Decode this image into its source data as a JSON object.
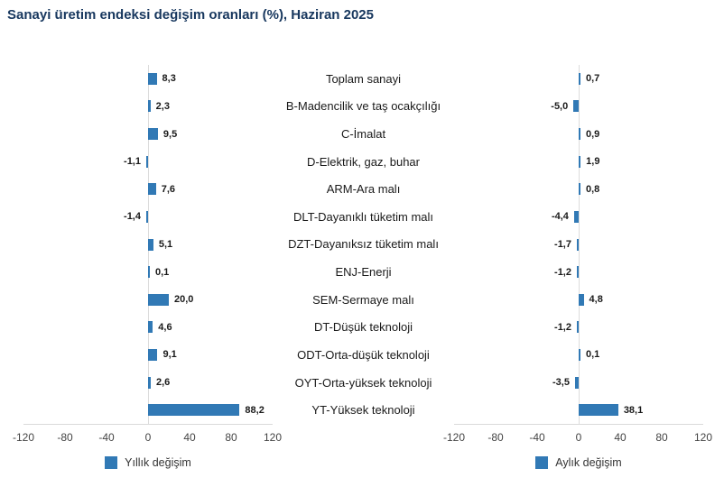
{
  "title": "Sanayi üretim endeksi değişim oranları (%), Haziran 2025",
  "colors": {
    "bar": "#3179b5",
    "title": "#17375e",
    "axis_line": "#d9d9d9",
    "value_label": "#1a1a1a",
    "tick_label": "#444444",
    "category_label": "#1a1a1a"
  },
  "chart_data": {
    "type": "bar",
    "orientation": "horizontal",
    "title": "Sanayi üretim endeksi değişim oranları (%), Haziran 2025",
    "xlim": [
      -120,
      120
    ],
    "xticks": [
      -120,
      -80,
      -40,
      0,
      40,
      80,
      120
    ],
    "tick_labels": [
      "-120",
      "-80",
      "-40",
      "0",
      "40",
      "80",
      "120"
    ],
    "grid": false,
    "legend_position": "bottom",
    "categories": [
      "Toplam sanayi",
      "B-Madencilik ve taş ocakçılığı",
      "C-İmalat",
      "D-Elektrik, gaz, buhar",
      "ARM-Ara malı",
      "DLT-Dayanıklı tüketim malı",
      "DZT-Dayanıksız tüketim malı",
      "ENJ-Enerji",
      "SEM-Sermaye malı",
      "DT-Düşük teknoloji",
      "ODT-Orta-düşük teknoloji",
      "OYT-Orta-yüksek teknoloji",
      "YT-Yüksek teknoloji"
    ],
    "series": [
      {
        "name": "Yıllık değişim",
        "values": [
          8.3,
          2.3,
          9.5,
          -1.1,
          7.6,
          -1.4,
          5.1,
          0.1,
          20.0,
          4.6,
          9.1,
          2.6,
          88.2
        ],
        "value_labels": [
          "8,3",
          "2,3",
          "9,5",
          "-1,1",
          "7,6",
          "-1,4",
          "5,1",
          "0,1",
          "20,0",
          "4,6",
          "9,1",
          "2,6",
          "88,2"
        ]
      },
      {
        "name": "Aylık değişim",
        "values": [
          0.7,
          -5.0,
          0.9,
          1.9,
          0.8,
          -4.4,
          -1.7,
          -1.2,
          4.8,
          -1.2,
          0.1,
          -3.5,
          38.1
        ],
        "value_labels": [
          "0,7",
          "-5,0",
          "0,9",
          "1,9",
          "0,8",
          "-4,4",
          "-1,7",
          "-1,2",
          "4,8",
          "-1,2",
          "0,1",
          "-3,5",
          "38,1"
        ]
      }
    ]
  }
}
